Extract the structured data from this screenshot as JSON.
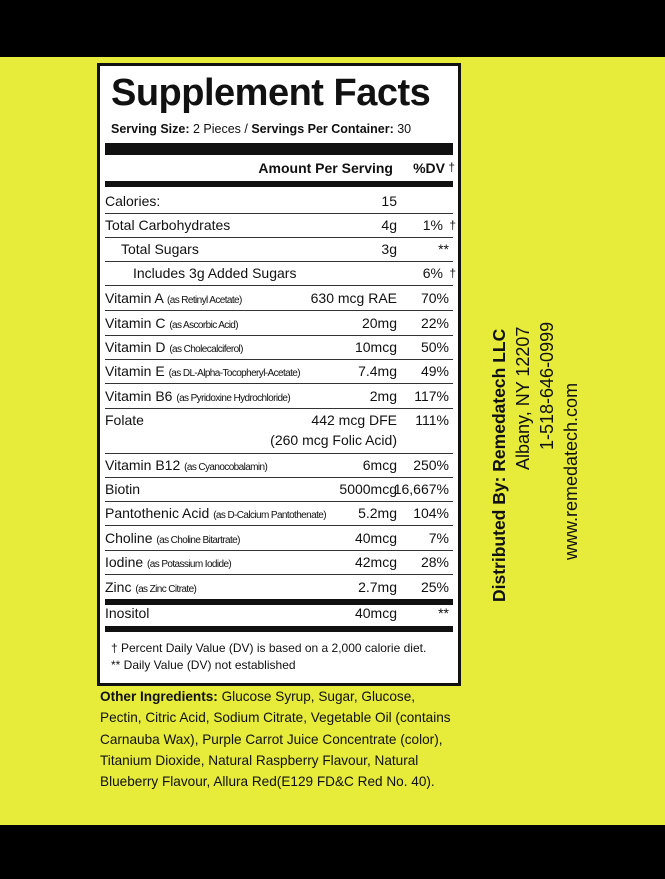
{
  "title": "Supplement Facts",
  "serving": {
    "size_label": "Serving Size:",
    "size_value": " 2 Pieces / ",
    "per_container_label": "Servings Per Container:",
    "per_container_value": " 30"
  },
  "header": {
    "amount": "Amount Per Serving",
    "dv": "%DV",
    "dagger": "†"
  },
  "rows": [
    {
      "name": "Calories:",
      "source": "",
      "amount": "15",
      "dv": "",
      "mark": ""
    },
    {
      "name": "Total Carbohydrates",
      "source": "",
      "amount": "4g",
      "dv": "1%",
      "mark": "†"
    },
    {
      "name": "Total Sugars",
      "source": "",
      "amount": "3g",
      "dv": "**",
      "mark": ""
    },
    {
      "name": "Includes 3g Added Sugars",
      "source": "",
      "amount": "",
      "dv": "6%",
      "mark": "†"
    },
    {
      "name": "Vitamin A",
      "source": "(as Retinyl Acetate)",
      "amount": "630 mcg RAE",
      "dv": "70%",
      "mark": ""
    },
    {
      "name": "Vitamin C",
      "source": "(as Ascorbic Acid)",
      "amount": "20mg",
      "dv": "22%",
      "mark": ""
    },
    {
      "name": "Vitamin D",
      "source": "(as Cholecalciferol)",
      "amount": "10mcg",
      "dv": "50%",
      "mark": ""
    },
    {
      "name": "Vitamin E",
      "source": "(as DL-Alpha-Tocopheryl-Acetate)",
      "amount": "7.4mg",
      "dv": "49%",
      "mark": ""
    },
    {
      "name": "Vitamin B6",
      "source": "(as Pyridoxine Hydrochloride)",
      "amount": "2mg",
      "dv": "117%",
      "mark": ""
    },
    {
      "name": "Folate",
      "source": "",
      "amount": "442 mcg DFE",
      "dv": "111%",
      "mark": "",
      "sub": "(260 mcg Folic Acid)"
    },
    {
      "name": "Vitamin B12",
      "source": "(as Cyanocobalamin)",
      "amount": "6mcg",
      "dv": "250%",
      "mark": ""
    },
    {
      "name": "Biotin",
      "source": "",
      "amount": "5000mcg",
      "dv": "16,667%",
      "mark": ""
    },
    {
      "name": "Pantothenic Acid",
      "source": "(as D-Calcium Pantothenate)",
      "amount": "5.2mg",
      "dv": "104%",
      "mark": ""
    },
    {
      "name": "Choline",
      "source": "(as Choline Bitartrate)",
      "amount": "40mcg",
      "dv": "7%",
      "mark": ""
    },
    {
      "name": "Iodine",
      "source": "(as Potassium Iodide)",
      "amount": "42mcg",
      "dv": "28%",
      "mark": ""
    },
    {
      "name": "Zinc",
      "source": "(as Zinc Citrate)",
      "amount": "2.7mg",
      "dv": "25%",
      "mark": ""
    },
    {
      "name": "Inositol",
      "source": "",
      "amount": "40mcg",
      "dv": "**",
      "mark": ""
    }
  ],
  "footnotes": [
    "† Percent Daily Value (DV) is based on a 2,000 calorie diet.",
    "** Daily Value (DV) not established"
  ],
  "other_ingredients": {
    "label": "Other Ingredients:",
    "text": " Glucose Syrup, Sugar, Glucose, Pectin, Citric Acid, Sodium Citrate, Vegetable Oil (contains Carnauba Wax), Purple Carrot Juice Concentrate (color), Titanium Dioxide, Natural Raspberry Flavour, Natural Blueberry Flavour, Allura Red(E129 FD&C Red No. 40)."
  },
  "distributor": [
    "Distributed By: Remedatech LLC",
    "Albany, NY 12207",
    "1-518-646-0999",
    "www.remedatech.com"
  ],
  "colors": {
    "background": "#e7ec3b",
    "border": "#111111"
  }
}
